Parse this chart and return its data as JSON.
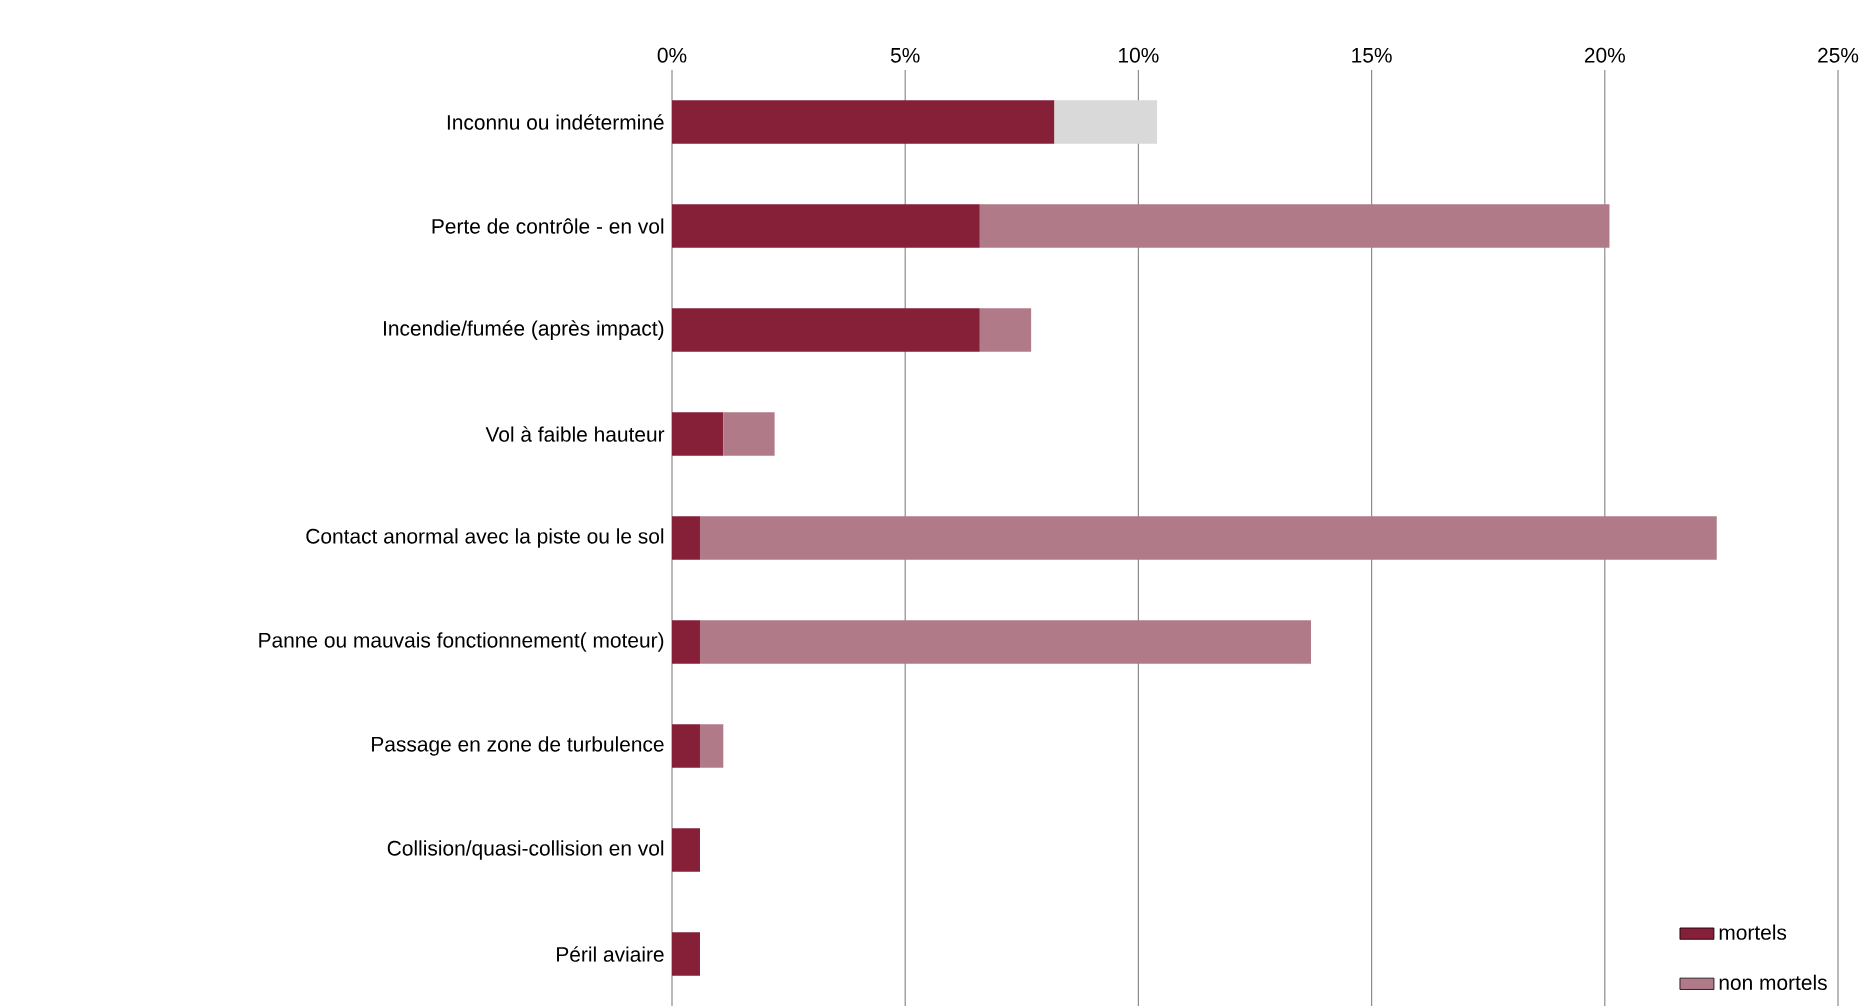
{
  "chart_data": {
    "type": "bar",
    "orientation": "horizontal",
    "stacked": true,
    "categories": [
      "Inconnu ou indéterminé",
      "Perte de contrôle - en vol",
      "Incendie/fumée (après impact)",
      "Vol à faible hauteur",
      "Contact anormal avec la piste ou le sol",
      "Panne ou mauvais fonctionnement( moteur)",
      "Passage en zone de turbulence",
      "Collision/quasi-collision en vol",
      "Péril aviaire"
    ],
    "series": [
      {
        "name": "mortels",
        "color": "#861f38",
        "values": [
          8.2,
          6.6,
          6.6,
          1.1,
          0.6,
          0.6,
          0.6,
          0.6,
          0.6
        ]
      },
      {
        "name": "non mortels",
        "color": "#b07a88",
        "colors": [
          "#d9d9d9",
          "#b07a88",
          "#b07a88",
          "#b07a88",
          "#b07a88",
          "#b07a88",
          "#b07a88",
          "#b07a88",
          "#b07a88"
        ],
        "values": [
          2.2,
          13.5,
          1.1,
          1.1,
          21.8,
          13.1,
          0.5,
          0,
          0
        ]
      }
    ],
    "xlim": [
      0,
      25
    ],
    "xticks": [
      {
        "value": 0,
        "label": "0%"
      },
      {
        "value": 5,
        "label": "5%"
      },
      {
        "value": 10,
        "label": "10%"
      },
      {
        "value": 15,
        "label": "15%"
      },
      {
        "value": 20,
        "label": "20%"
      },
      {
        "value": 25,
        "label": "25%"
      }
    ],
    "grid": "x",
    "legend": "bottom right"
  }
}
